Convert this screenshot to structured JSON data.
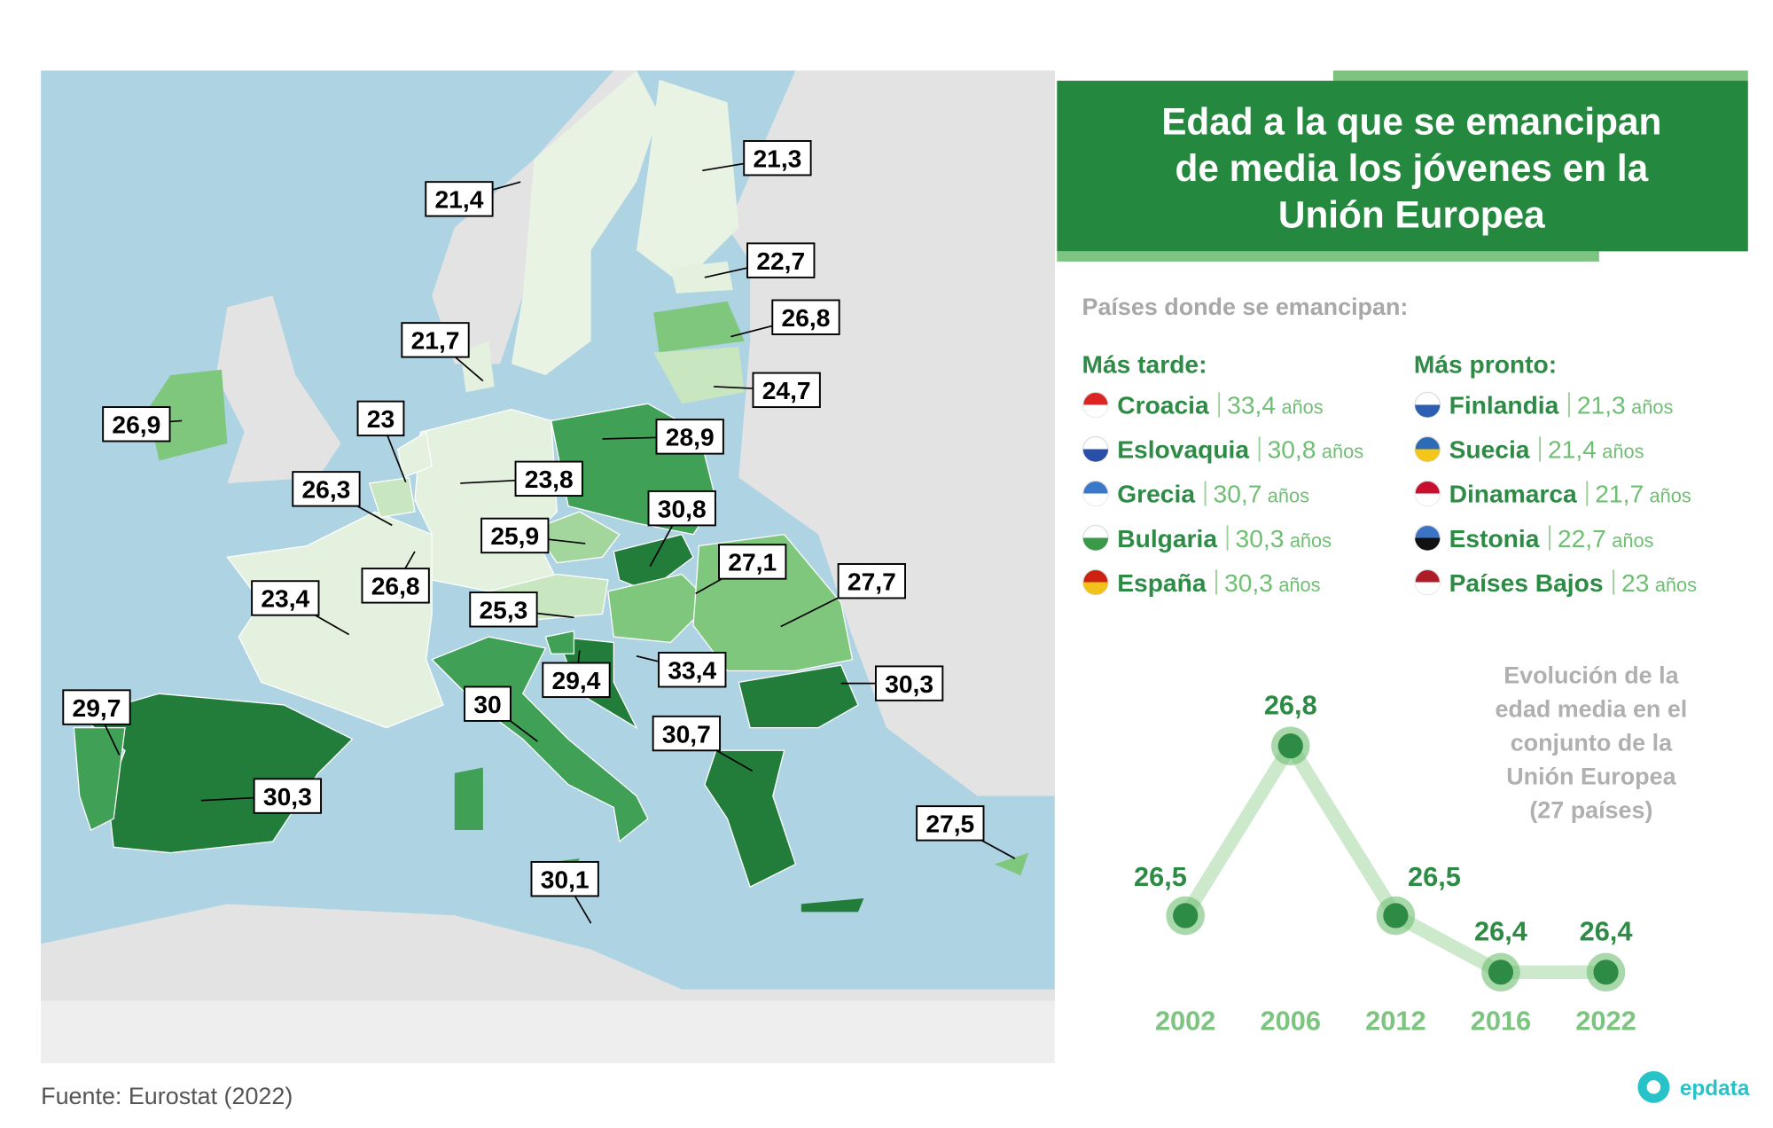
{
  "map": {
    "labels": [
      "21,3",
      "21,4",
      "22,7",
      "26,8",
      "21,7",
      "24,7",
      "26,9",
      "23",
      "28,9",
      "26,3",
      "23,8",
      "30,8",
      "25,9",
      "27,1",
      "26,8",
      "27,7",
      "23,4",
      "25,3",
      "33,4",
      "29,4",
      "30,3",
      "30",
      "29,7",
      "30,7",
      "30,3",
      "27,5",
      "30,1"
    ]
  },
  "panel": {
    "title": [
      "Edad a la que se emancipan",
      "de media los jóvenes en la",
      "Unión Europea"
    ],
    "subtitle": "Países donde se emancipan:",
    "later": {
      "heading": "Más tarde:",
      "items": [
        {
          "country": "Croacia",
          "value": "33,4",
          "unit": "años"
        },
        {
          "country": "Eslovaquia",
          "value": "30,8",
          "unit": "años"
        },
        {
          "country": "Grecia",
          "value": "30,7",
          "unit": "años"
        },
        {
          "country": "Bulgaria",
          "value": "30,3",
          "unit": "años"
        },
        {
          "country": "España",
          "value": "30,3",
          "unit": "años"
        }
      ]
    },
    "sooner": {
      "heading": "Más pronto:",
      "items": [
        {
          "country": "Finlandia",
          "value": "21,3",
          "unit": "años"
        },
        {
          "country": "Suecia",
          "value": "21,4",
          "unit": "años"
        },
        {
          "country": "Dinamarca",
          "value": "21,7",
          "unit": "años"
        },
        {
          "country": "Estonia",
          "value": "22,7",
          "unit": "años"
        },
        {
          "country": "Países Bajos",
          "value": "23",
          "unit": "años"
        }
      ]
    }
  },
  "chart_data": {
    "type": "line",
    "title": [
      "Evolución de la",
      "edad media en el",
      "conjunto de la",
      "Unión Europea",
      "(27 países)"
    ],
    "categories": [
      "2002",
      "2006",
      "2012",
      "2016",
      "2022"
    ],
    "values": [
      26.5,
      26.8,
      26.5,
      26.4,
      26.4
    ],
    "value_labels": [
      "26,5",
      "26,8",
      "26,5",
      "26,4",
      "26,4"
    ],
    "color": "#2e8b46"
  },
  "source": "Fuente: Eurostat (2022)",
  "logo": "epdata"
}
